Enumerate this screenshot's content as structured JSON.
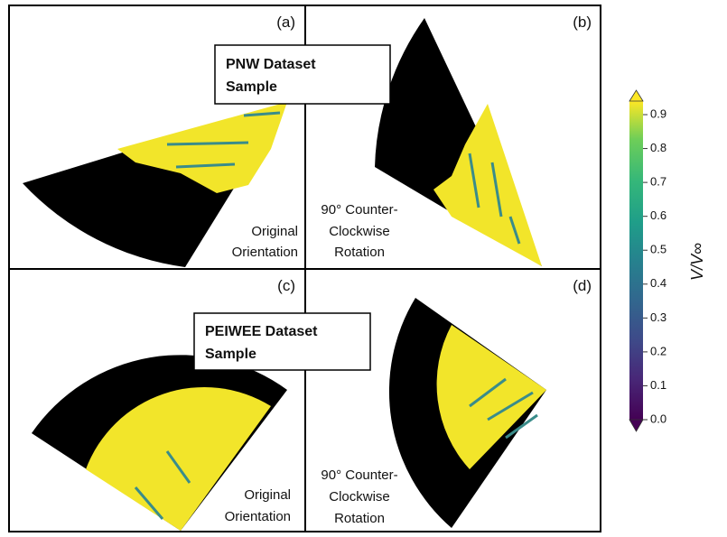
{
  "panels": [
    {
      "label": "(a)",
      "caption": [
        "Original",
        "Orientation"
      ]
    },
    {
      "label": "(b)",
      "caption": [
        "90° Counter-",
        "Clockwise",
        "Rotation"
      ]
    },
    {
      "label": "(c)",
      "caption": [
        "Original",
        "Orientation"
      ]
    },
    {
      "label": "(d)",
      "caption": [
        "90° Counter-",
        "Clockwise",
        "Rotation"
      ]
    }
  ],
  "annotations": [
    {
      "lines": [
        "PNW Dataset",
        "Sample"
      ]
    },
    {
      "lines": [
        "PEIWEE Dataset",
        "Sample"
      ]
    }
  ],
  "colorbar": {
    "label": "V/V∞",
    "lim": [
      0,
      0.94
    ],
    "ticks": [
      {
        "value": 0,
        "label": "0.0"
      },
      0.1,
      0.2,
      0.3,
      0.4,
      0.5,
      0.6,
      0.7,
      0.8,
      0.9
    ]
  }
}
